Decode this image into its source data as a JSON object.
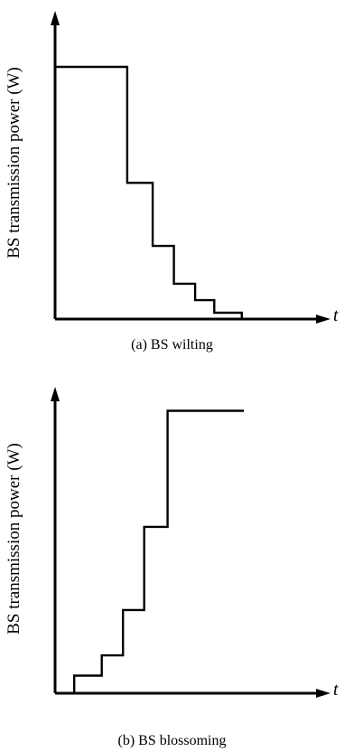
{
  "chart_data": [
    {
      "type": "line",
      "caption": "(a) BS wilting",
      "ylabel": "BS transmission power (W)",
      "xlabel": "t",
      "step": true,
      "series": [
        {
          "x": [
            0,
            3.4,
            3.4,
            4.6,
            4.6,
            5.6,
            5.6,
            6.6,
            6.6,
            7.5,
            7.5,
            8.8,
            8.8
          ],
          "y": [
            10,
            10,
            5.4,
            5.4,
            2.9,
            2.9,
            1.4,
            1.4,
            0.75,
            0.75,
            0.25,
            0.25,
            0
          ]
        }
      ],
      "xlim": [
        0,
        11.5
      ],
      "ylim": [
        0,
        13
      ],
      "axis_color": "#000000",
      "line_color": "#000000"
    },
    {
      "type": "line",
      "caption": "(b) BS blossoming",
      "ylabel": "BS transmission power (W)",
      "xlabel": "t",
      "step": true,
      "series": [
        {
          "x": [
            0.9,
            0.9,
            2.2,
            2.2,
            3.2,
            3.2,
            4.2,
            4.2,
            5.3,
            5.3,
            8.9
          ],
          "y": [
            0,
            0.7,
            0.7,
            1.5,
            1.5,
            3.3,
            3.3,
            6.6,
            6.6,
            11.2,
            11.2
          ]
        }
      ],
      "xlim": [
        0,
        11.5
      ],
      "ylim": [
        0,
        13
      ],
      "axis_color": "#000000",
      "line_color": "#000000"
    }
  ]
}
